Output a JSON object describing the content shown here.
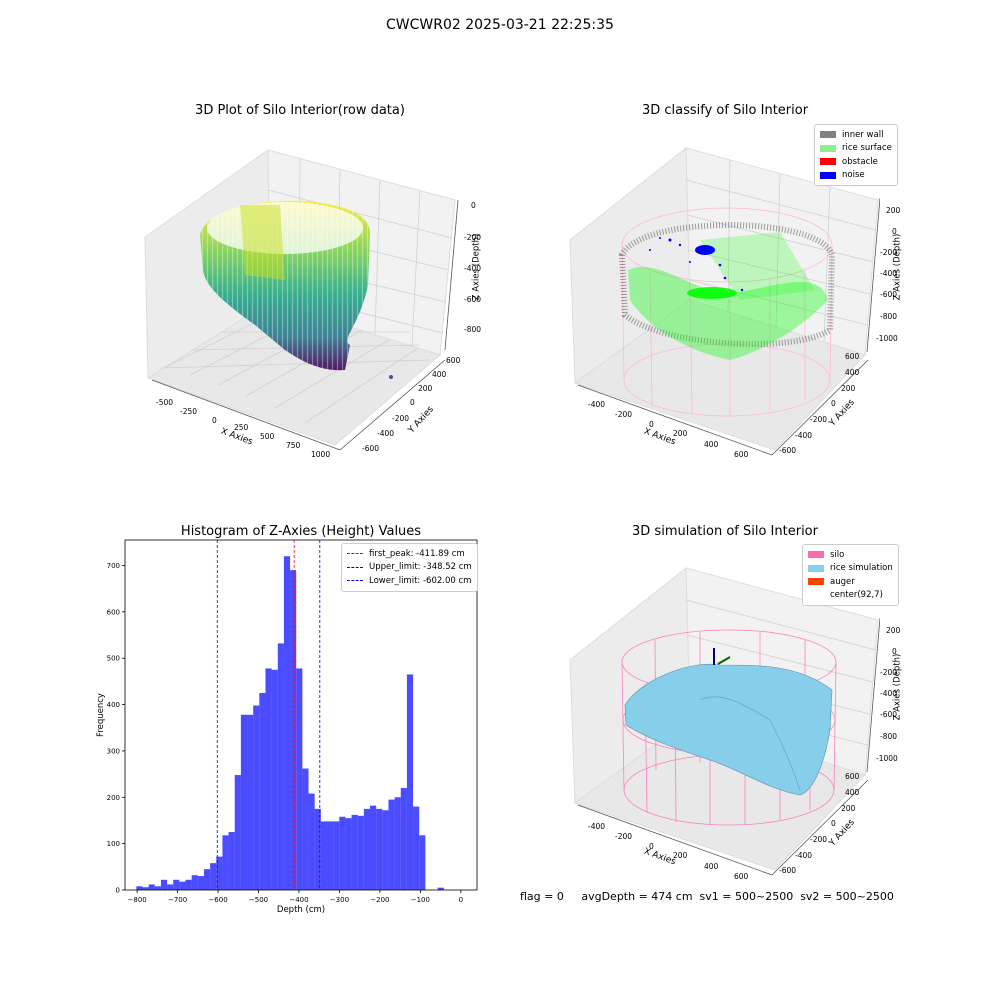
{
  "suptitle": "CWCWR02 2025-03-21 22:25:35",
  "footer": "flag = 0     avgDepth = 474 cm  sv1 = 500~2500  sv2 = 500~2500",
  "plot1": {
    "title": "3D Plot of Silo Interior(row data)",
    "xlabel": "X Axies",
    "ylabel": "Y Axies",
    "zlabel": "Z Axies (Depth)",
    "xticks": [
      "-500",
      "-250",
      "0",
      "250",
      "500",
      "750",
      "1000"
    ],
    "yticks": [
      "-600",
      "-400",
      "-200",
      "0",
      "200",
      "400",
      "600"
    ],
    "zticks": [
      "0",
      "-200",
      "-400",
      "-600",
      "-800"
    ],
    "colormap": "viridis"
  },
  "plot2": {
    "title": "3D classify of Silo Interior",
    "xlabel": "X Axies",
    "ylabel": "Y Axies",
    "zlabel": "Z Axies (Depth)",
    "xticks": [
      "-400",
      "-200",
      "0",
      "200",
      "400",
      "600"
    ],
    "yticks": [
      "-600",
      "-400",
      "-200",
      "0",
      "200",
      "400",
      "600"
    ],
    "zticks": [
      "200",
      "0",
      "-200",
      "-400",
      "-600",
      "-800",
      "-1000"
    ],
    "legend": [
      {
        "label": "inner wall",
        "color": "#808080"
      },
      {
        "label": "rice surface",
        "color": "#90ee90"
      },
      {
        "label": "obstacle",
        "color": "#ff0000"
      },
      {
        "label": "noise",
        "color": "#0000ff"
      }
    ]
  },
  "plot4": {
    "title": "3D simulation of Silo Interior",
    "xlabel": "X Axies",
    "ylabel": "Y Axies",
    "zlabel": "Z Axies (Depth)",
    "xticks": [
      "-400",
      "-200",
      "0",
      "200",
      "400",
      "600"
    ],
    "yticks": [
      "-600",
      "-400",
      "-200",
      "0",
      "200",
      "400",
      "600"
    ],
    "zticks": [
      "200",
      "0",
      "-200",
      "-400",
      "-600",
      "-800",
      "-1000"
    ],
    "legend": [
      {
        "label": "silo",
        "color": "#ff69b4"
      },
      {
        "label": "rice simulation",
        "color": "#87ceeb"
      },
      {
        "label": "auger",
        "color": "#ff4500"
      },
      {
        "label": "center(92,7)",
        "color": ""
      }
    ]
  },
  "chart_data": [
    {
      "type": "bar",
      "title": "Histogram of Z-Axies (Height) Values",
      "xlabel": "Depth (cm)",
      "ylabel": "Frequency",
      "xlim": [
        -830,
        40
      ],
      "ylim": [
        0,
        755
      ],
      "xticks": [
        -800,
        -700,
        -600,
        -500,
        -400,
        -300,
        -200,
        -100,
        0
      ],
      "yticks": [
        0,
        100,
        200,
        300,
        400,
        500,
        600,
        700
      ],
      "bin_start": -802,
      "bin_width": 15.2,
      "values": [
        8,
        6,
        12,
        8,
        22,
        12,
        22,
        18,
        22,
        32,
        30,
        45,
        58,
        72,
        118,
        125,
        248,
        378,
        378,
        398,
        425,
        478,
        475,
        532,
        720,
        690,
        478,
        262,
        208,
        175,
        148,
        148,
        148,
        158,
        155,
        162,
        160,
        175,
        182,
        175,
        172,
        195,
        200,
        220,
        465,
        180,
        118,
        0,
        0,
        5
      ],
      "bar_color": "#0000ff",
      "lines": [
        {
          "label": "first_peak: -411.89 cm",
          "x": -411.89,
          "color": "#ff0000"
        },
        {
          "label": "Upper_limit: -348.52 cm",
          "x": -348.52,
          "color": "#0000ff"
        },
        {
          "label": "Lower_limit: -602.00 cm",
          "x": -602.0,
          "color": "#0000ff"
        }
      ],
      "legend_position": "upper right"
    }
  ]
}
